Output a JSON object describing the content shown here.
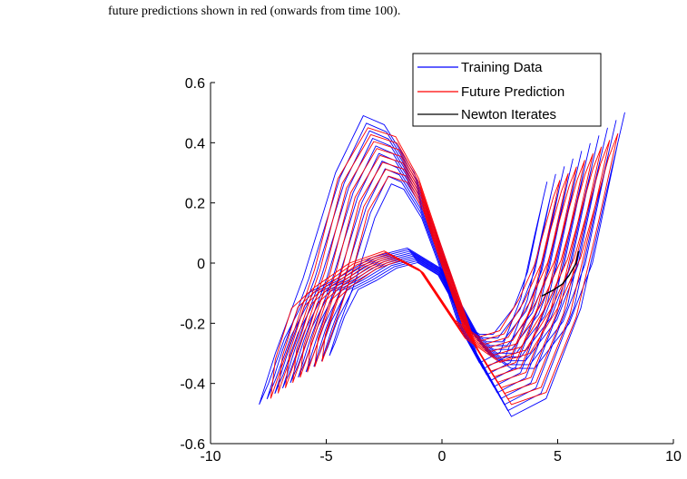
{
  "caption": "future predictions shown in red (onwards from time 100).",
  "chart_data": {
    "type": "line",
    "xlim": [
      -10,
      10
    ],
    "ylim": [
      -0.6,
      0.6
    ],
    "xticks": [
      -10,
      -5,
      0,
      5,
      10
    ],
    "yticks": [
      -0.6,
      -0.4,
      -0.2,
      0,
      0.2,
      0.4,
      0.6
    ],
    "xtick_labels": [
      "-10",
      "-5",
      "0",
      "5",
      "10"
    ],
    "ytick_labels": [
      "-0.6",
      "-0.4",
      "-0.2",
      "0",
      "0.2",
      "0.4",
      "0.6"
    ],
    "grid": false,
    "legend_position": "top-right",
    "series": [
      {
        "name": "Training Data",
        "color": "#0000ff",
        "x": [
          -7.9,
          -7.2,
          -6.0,
          -4.6,
          -3.4,
          -2.5,
          -1.2,
          0.0,
          1.5,
          3.0,
          4.5,
          6.0,
          7.0,
          7.9,
          7.6,
          6.5,
          5.5,
          4.0,
          3.0,
          2.0,
          0.0,
          -1.5,
          -3.0,
          -4.5,
          -5.8,
          -6.8,
          -7.5,
          -7.9
        ],
        "y": [
          -0.47,
          -0.3,
          -0.05,
          0.3,
          0.49,
          0.46,
          0.3,
          0.05,
          -0.3,
          -0.51,
          -0.45,
          -0.15,
          0.2,
          0.5,
          0.4,
          0.0,
          -0.2,
          -0.35,
          -0.35,
          -0.3,
          -0.02,
          0.05,
          0.02,
          -0.05,
          -0.1,
          -0.25,
          -0.4,
          -0.47
        ]
      },
      {
        "name": "Future Prediction",
        "color": "#ff0000",
        "x": [
          -7.4,
          -6.5,
          -5.5,
          -4.5,
          -3.2,
          -2.0,
          -1.0,
          0.0,
          1.5,
          3.0,
          4.5,
          5.8,
          6.8,
          7.6,
          7.2,
          6.0,
          5.0,
          3.8,
          2.5,
          1.0,
          -1.0,
          -2.5,
          -4.0,
          -5.5,
          -6.5,
          -7.2,
          -7.4
        ],
        "y": [
          -0.45,
          -0.25,
          -0.02,
          0.28,
          0.45,
          0.42,
          0.28,
          0.05,
          -0.28,
          -0.47,
          -0.43,
          -0.18,
          0.15,
          0.43,
          0.35,
          0.02,
          -0.15,
          -0.3,
          -0.33,
          -0.25,
          -0.02,
          0.04,
          0.0,
          -0.08,
          -0.15,
          -0.32,
          -0.45
        ]
      },
      {
        "name": "Newton Iterates",
        "color": "#000000",
        "x": [
          4.3,
          4.8,
          5.2,
          5.5,
          5.8,
          5.9
        ],
        "y": [
          -0.11,
          -0.09,
          -0.07,
          -0.04,
          0.0,
          0.04
        ]
      }
    ]
  }
}
